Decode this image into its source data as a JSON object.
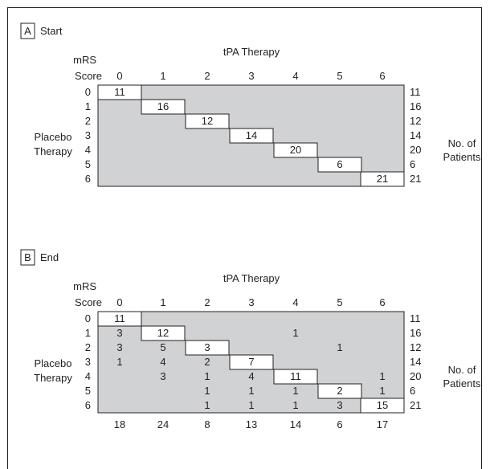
{
  "colors": {
    "shade": "#d1d2d4",
    "diagonal": "#ffffff",
    "border": "#231f20",
    "text": "#231f20"
  },
  "panels": [
    {
      "letter": "A",
      "title": "Start",
      "column_header": "tPA Therapy",
      "row_header_lines": [
        "mRS",
        "Score"
      ],
      "side_label_lines": [
        "Placebo",
        "Therapy"
      ],
      "right_label_lines": [
        "No. of",
        "Patients"
      ],
      "scores": [
        "0",
        "1",
        "2",
        "3",
        "4",
        "5",
        "6"
      ],
      "cells": [
        [
          11,
          null,
          null,
          null,
          null,
          null,
          null
        ],
        [
          null,
          16,
          null,
          null,
          null,
          null,
          null
        ],
        [
          null,
          null,
          12,
          null,
          null,
          null,
          null
        ],
        [
          null,
          null,
          null,
          14,
          null,
          null,
          null
        ],
        [
          null,
          null,
          null,
          null,
          20,
          null,
          null
        ],
        [
          null,
          null,
          null,
          null,
          null,
          6,
          null
        ],
        [
          null,
          null,
          null,
          null,
          null,
          null,
          21
        ]
      ],
      "row_totals": [
        "11",
        "16",
        "12",
        "14",
        "20",
        "6",
        "21"
      ],
      "column_totals": []
    },
    {
      "letter": "B",
      "title": "End",
      "column_header": "tPA Therapy",
      "row_header_lines": [
        "mRS",
        "Score"
      ],
      "side_label_lines": [
        "Placebo",
        "Therapy"
      ],
      "right_label_lines": [
        "No. of",
        "Patients"
      ],
      "scores": [
        "0",
        "1",
        "2",
        "3",
        "4",
        "5",
        "6"
      ],
      "cells": [
        [
          11,
          null,
          null,
          null,
          null,
          null,
          null
        ],
        [
          3,
          12,
          null,
          null,
          1,
          null,
          null
        ],
        [
          3,
          5,
          3,
          null,
          null,
          1,
          null
        ],
        [
          1,
          4,
          2,
          7,
          null,
          null,
          null
        ],
        [
          null,
          3,
          1,
          4,
          11,
          null,
          1
        ],
        [
          null,
          null,
          1,
          1,
          1,
          2,
          1
        ],
        [
          null,
          null,
          1,
          1,
          1,
          3,
          15
        ]
      ],
      "row_totals": [
        "11",
        "16",
        "12",
        "14",
        "20",
        "6",
        "21"
      ],
      "column_totals": [
        "18",
        "24",
        "8",
        "13",
        "14",
        "6",
        "17"
      ]
    }
  ]
}
